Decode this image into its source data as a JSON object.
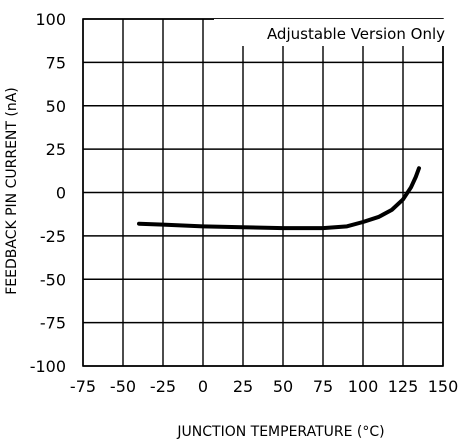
{
  "chart_data": {
    "type": "line",
    "title": "",
    "xlabel": "JUNCTION TEMPERATURE (°C)",
    "ylabel": "FEEDBACK PIN CURRENT (nA)",
    "xlim": [
      -75,
      150
    ],
    "ylim": [
      -100,
      100
    ],
    "x_ticks": [
      -75,
      -50,
      -25,
      0,
      25,
      50,
      75,
      100,
      125,
      150
    ],
    "x_tick_labels": [
      "-75",
      "-50",
      "-25",
      "0",
      "25",
      "50",
      "75",
      "100",
      "125",
      "150"
    ],
    "y_ticks": [
      100,
      75,
      50,
      25,
      0,
      -25,
      -50,
      -75,
      -100
    ],
    "y_tick_labels": [
      "100",
      "75",
      "50",
      "25",
      "0",
      "-25",
      "-50",
      "-75",
      "-100"
    ],
    "grid": true,
    "annotation": "Adjustable Version Only",
    "series": [
      {
        "x": [
          -40,
          -25,
          0,
          25,
          50,
          75,
          90,
          100,
          110,
          118,
          125,
          130,
          133,
          135
        ],
        "y": [
          -18,
          -18.5,
          -19.5,
          -20,
          -20.5,
          -20.5,
          -19.5,
          -17,
          -14,
          -10,
          -4,
          3,
          9,
          14
        ],
        "color": "#000000"
      }
    ]
  }
}
